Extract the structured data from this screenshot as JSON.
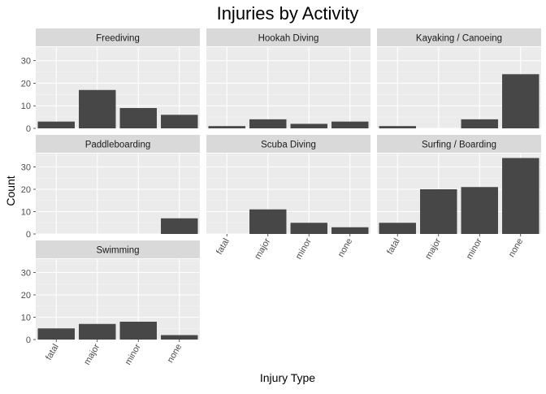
{
  "chart_data": {
    "type": "bar",
    "title": "Injuries by Activity",
    "xlabel": "Injury Type",
    "ylabel": "Count",
    "categories": [
      "fatal",
      "major",
      "minor",
      "none"
    ],
    "ylim": [
      0,
      36
    ],
    "yticks": [
      0,
      10,
      20,
      30
    ],
    "grid": true,
    "bar_color": "#474747",
    "panel_background": "#ebebeb",
    "strip_background": "#d9d9d9",
    "facets": [
      {
        "name": "Freediving",
        "values": [
          3,
          17,
          9,
          6
        ]
      },
      {
        "name": "Hookah Diving",
        "values": [
          1,
          4,
          2,
          3
        ]
      },
      {
        "name": "Kayaking / Canoeing",
        "values": [
          1,
          0,
          4,
          24
        ]
      },
      {
        "name": "Paddleboarding",
        "values": [
          0,
          0,
          0,
          7
        ]
      },
      {
        "name": "Scuba Diving",
        "values": [
          0,
          11,
          5,
          3
        ]
      },
      {
        "name": "Surfing / Boarding",
        "values": [
          5,
          20,
          21,
          34
        ]
      },
      {
        "name": "Swimming",
        "values": [
          5,
          7,
          8,
          2
        ]
      }
    ]
  }
}
